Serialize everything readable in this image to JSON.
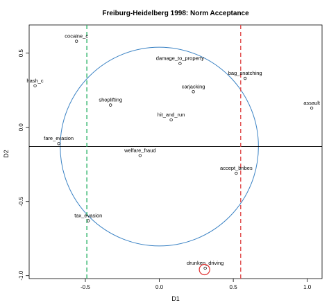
{
  "chart_data": {
    "type": "scatter",
    "title": "Freiburg-Heidelberg 1998: Norm Acceptance",
    "xlabel": "D1",
    "ylabel": "D2",
    "xlim": [
      -0.88,
      1.1
    ],
    "ylim": [
      -1.02,
      0.69
    ],
    "xticks": [
      -0.5,
      0.0,
      0.5,
      1.0
    ],
    "xtick_labels": [
      "-0.5",
      "0.0",
      "0.5",
      "1.0"
    ],
    "yticks": [
      -1.0,
      -0.5,
      0.0,
      0.5
    ],
    "ytick_labels": [
      "-1.0",
      "-0.5",
      "0.0",
      "0.5"
    ],
    "grid": false,
    "points": [
      {
        "label": "cocaine_c",
        "x": -0.56,
        "y": 0.58
      },
      {
        "label": "hash_c",
        "x": -0.84,
        "y": 0.28
      },
      {
        "label": "damage_to_property",
        "x": 0.14,
        "y": 0.43
      },
      {
        "label": "bag_snatching",
        "x": 0.58,
        "y": 0.33
      },
      {
        "label": "carjacking",
        "x": 0.23,
        "y": 0.24
      },
      {
        "label": "shoplifting",
        "x": -0.33,
        "y": 0.15
      },
      {
        "label": "assault",
        "x": 1.03,
        "y": 0.13
      },
      {
        "label": "hit_and_run",
        "x": 0.08,
        "y": 0.05
      },
      {
        "label": "fare_evasion",
        "x": -0.68,
        "y": -0.11
      },
      {
        "label": "welfare_fraud",
        "x": -0.13,
        "y": -0.19
      },
      {
        "label": "accept_bribes",
        "x": 0.52,
        "y": -0.31
      },
      {
        "label": "tax_evasion",
        "x": -0.48,
        "y": -0.63
      },
      {
        "label": "drunken_driving",
        "x": 0.31,
        "y": -0.95
      }
    ],
    "highlighted_point": "drunken_driving",
    "reference_lines": [
      {
        "orientation": "horizontal",
        "value": -0.13,
        "color": "#000000",
        "style": "solid"
      },
      {
        "orientation": "vertical",
        "value": -0.49,
        "color": "#2fb36a",
        "style": "dashed"
      },
      {
        "orientation": "vertical",
        "value": 0.55,
        "color": "#e04a4a",
        "style": "dashed"
      }
    ],
    "circle": {
      "center_x": 0.0,
      "center_y": -0.13,
      "radius": 0.67,
      "color": "#3a82c4"
    },
    "highlight_color": "#e03030"
  }
}
